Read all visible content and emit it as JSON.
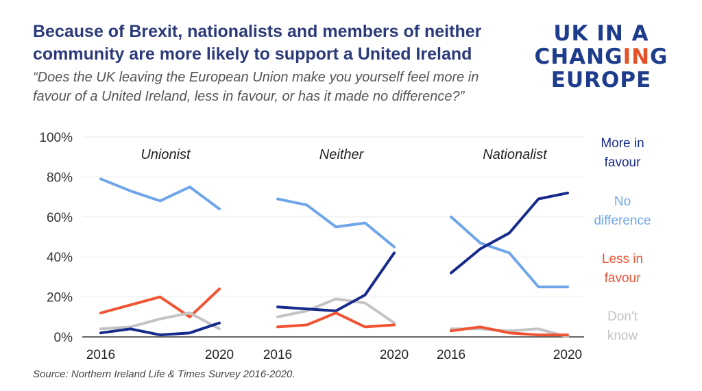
{
  "title": "Because of Brexit, nationalists and members of neither community are more likely to support a United Ireland",
  "subtitle": "“Does the UK leaving the European Union make you yourself feel more in favour of a United Ireland, less in favour, or has it made no difference?”",
  "logo": {
    "line1": "UK IN A",
    "line2_pre": "CHANG",
    "line2_accent": "IN",
    "line2_post": "G",
    "line3": "EUROPE"
  },
  "source": "Source: Northern Ireland Life & Times Survey 2016-2020.",
  "colors": {
    "more": "#172b8c",
    "nodiff": "#6fa6ea",
    "less": "#f05434",
    "dontknow": "#c3c3c3",
    "grid": "#e9e9e9",
    "axis": "#333333"
  },
  "chart_data": {
    "type": "line",
    "ylim": [
      0,
      100
    ],
    "yticks": [
      "0%",
      "20%",
      "40%",
      "60%",
      "80%",
      "100%"
    ],
    "x": [
      2016,
      2017,
      2018,
      2019,
      2020
    ],
    "xtick_labels": [
      "2016",
      "2020"
    ],
    "legend": [
      {
        "key": "more",
        "label": "More in favour",
        "lines": [
          "More in",
          "favour"
        ]
      },
      {
        "key": "nodiff",
        "label": "No difference",
        "lines": [
          "No",
          "difference"
        ]
      },
      {
        "key": "less",
        "label": "Less in favour",
        "lines": [
          "Less in",
          "favour"
        ]
      },
      {
        "key": "dontknow",
        "label": "Don't know",
        "lines": [
          "Don't",
          "know"
        ]
      }
    ],
    "panels": [
      {
        "name": "Unionist",
        "series": [
          {
            "key": "nodiff",
            "values": [
              79,
              73,
              68,
              75,
              64
            ]
          },
          {
            "key": "less",
            "values": [
              12,
              16,
              20,
              10,
              24
            ]
          },
          {
            "key": "dontknow",
            "values": [
              4,
              5,
              9,
              12,
              4
            ]
          },
          {
            "key": "more",
            "values": [
              2,
              4,
              1,
              2,
              7
            ]
          }
        ]
      },
      {
        "name": "Neither",
        "series": [
          {
            "key": "nodiff",
            "values": [
              69,
              66,
              55,
              57,
              45
            ]
          },
          {
            "key": "dontknow",
            "values": [
              10,
              13,
              19,
              17,
              7
            ]
          },
          {
            "key": "more",
            "values": [
              15,
              14,
              13,
              21,
              42
            ]
          },
          {
            "key": "less",
            "values": [
              5,
              6,
              12,
              5,
              6
            ]
          }
        ]
      },
      {
        "name": "Nationalist",
        "series": [
          {
            "key": "nodiff",
            "values": [
              60,
              47,
              42,
              25,
              25
            ]
          },
          {
            "key": "more",
            "values": [
              32,
              44,
              52,
              69,
              72
            ]
          },
          {
            "key": "dontknow",
            "values": [
              4,
              4,
              3,
              4,
              0
            ]
          },
          {
            "key": "less",
            "values": [
              3,
              5,
              2,
              1,
              1
            ]
          }
        ]
      }
    ]
  }
}
